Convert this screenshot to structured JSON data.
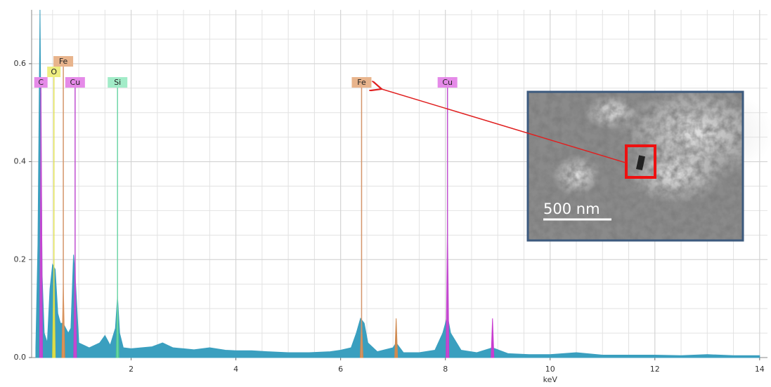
{
  "chart_data": {
    "type": "spectrum",
    "xlabel": "keV",
    "xlim": [
      0.1,
      14.15
    ],
    "ylim": [
      0,
      0.71
    ],
    "xticks": [
      2,
      4,
      6,
      8,
      10,
      12,
      14
    ],
    "yticks": [
      {
        "value": 0,
        "label": "0.0"
      },
      0.2,
      0.4,
      0.6
    ],
    "grid": true,
    "color": "#3a9fbf",
    "x": [
      0.18,
      0.22,
      0.26,
      0.3,
      0.34,
      0.4,
      0.45,
      0.5,
      0.55,
      0.6,
      0.65,
      0.7,
      0.75,
      0.8,
      0.85,
      0.9,
      0.94,
      1.0,
      1.1,
      1.2,
      1.3,
      1.4,
      1.5,
      1.6,
      1.7,
      1.74,
      1.78,
      1.85,
      2.0,
      2.2,
      2.4,
      2.6,
      2.8,
      3.0,
      3.2,
      3.5,
      3.8,
      4.0,
      4.3,
      4.6,
      5.0,
      5.4,
      5.8,
      6.0,
      6.2,
      6.3,
      6.38,
      6.45,
      6.52,
      6.7,
      7.0,
      7.06,
      7.2,
      7.5,
      7.8,
      7.95,
      8.04,
      8.1,
      8.3,
      8.6,
      8.9,
      9.2,
      9.6,
      10.0,
      10.5,
      11.0,
      11.5,
      12.0,
      12.5,
      13.0,
      13.5,
      14.0
    ],
    "values": [
      0.02,
      0.23,
      0.71,
      0.17,
      0.05,
      0.03,
      0.14,
      0.19,
      0.18,
      0.09,
      0.07,
      0.07,
      0.06,
      0.05,
      0.06,
      0.21,
      0.15,
      0.03,
      0.025,
      0.02,
      0.025,
      0.03,
      0.045,
      0.025,
      0.06,
      0.125,
      0.05,
      0.02,
      0.018,
      0.02,
      0.022,
      0.03,
      0.02,
      0.018,
      0.016,
      0.02,
      0.015,
      0.014,
      0.014,
      0.012,
      0.01,
      0.01,
      0.012,
      0.015,
      0.02,
      0.05,
      0.08,
      0.07,
      0.03,
      0.012,
      0.02,
      0.03,
      0.01,
      0.01,
      0.015,
      0.05,
      0.085,
      0.05,
      0.015,
      0.01,
      0.02,
      0.008,
      0.006,
      0.006,
      0.01,
      0.005,
      0.005,
      0.005,
      0.004,
      0.006,
      0.004,
      0.004
    ],
    "peaks": [
      {
        "x": 0.28,
        "value": 0.54,
        "color": "#c83cd0"
      },
      {
        "x": 0.525,
        "value": 0.19,
        "color": "#d8d83c"
      },
      {
        "x": 0.705,
        "value": 0.15,
        "color": "#e08a40"
      },
      {
        "x": 0.93,
        "value": 0.21,
        "color": "#c83cd0"
      },
      {
        "x": 1.74,
        "value": 0.125,
        "color": "#4ec890"
      },
      {
        "x": 6.4,
        "value": 0.075,
        "color": "#d08a50"
      },
      {
        "x": 7.06,
        "value": 0.08,
        "color": "#d08a50"
      },
      {
        "x": 8.04,
        "value": 0.28,
        "color": "#c83cd0"
      },
      {
        "x": 8.9,
        "value": 0.08,
        "color": "#c83cd0"
      }
    ],
    "elements": [
      {
        "label": "C",
        "x": 0.277,
        "color": "#c050d0",
        "label_color": "#e58ae8"
      },
      {
        "label": "O",
        "x": 0.525,
        "color": "#e0e050",
        "label_color": "#eeee80"
      },
      {
        "label": "Fe",
        "x": 0.705,
        "color": "#d4956a",
        "label_color": "#e8b48c"
      },
      {
        "label": "Cu",
        "x": 0.93,
        "color": "#c050d0",
        "label_color": "#e58ae8"
      },
      {
        "label": "Si",
        "x": 1.74,
        "color": "#6fd6a8",
        "label_color": "#a2ecc8"
      },
      {
        "label": "Fe",
        "x": 6.4,
        "color": "#d4956a",
        "label_color": "#e8b48c"
      },
      {
        "label": "Cu",
        "x": 8.04,
        "color": "#c050d0",
        "label_color": "#e58ae8"
      }
    ],
    "inset": {
      "scale_bar": "500 nm"
    }
  }
}
